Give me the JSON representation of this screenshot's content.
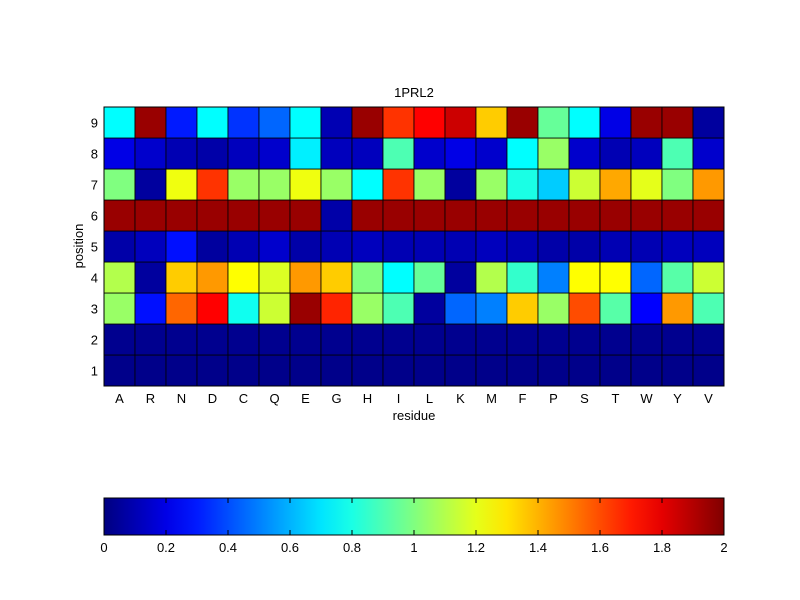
{
  "chart_data": {
    "type": "heatmap",
    "title": "1PRL2",
    "xlabel": "residue",
    "ylabel": "position",
    "x_categories": [
      "A",
      "R",
      "N",
      "D",
      "C",
      "Q",
      "E",
      "G",
      "H",
      "I",
      "L",
      "K",
      "M",
      "F",
      "P",
      "S",
      "T",
      "W",
      "Y",
      "V"
    ],
    "y_categories": [
      "1",
      "2",
      "3",
      "4",
      "5",
      "6",
      "7",
      "8",
      "9"
    ],
    "color_range": [
      0,
      2
    ],
    "colormap": "jet",
    "colorbar_ticks": [
      "0",
      "0.2",
      "0.4",
      "0.6",
      "0.8",
      "1",
      "1.2",
      "1.4",
      "1.6",
      "1.8",
      "2"
    ],
    "values": [
      [
        0.02,
        0.02,
        0.02,
        0.02,
        0.02,
        0.02,
        0.02,
        0.02,
        0.02,
        0.02,
        0.02,
        0.02,
        0.02,
        0.02,
        0.02,
        0.02,
        0.02,
        0.02,
        0.02,
        0.02
      ],
      [
        0.03,
        0.03,
        0.03,
        0.03,
        0.03,
        0.03,
        0.03,
        0.03,
        0.03,
        0.03,
        0.03,
        0.03,
        0.03,
        0.03,
        0.03,
        0.03,
        0.03,
        0.03,
        0.03,
        0.03
      ],
      [
        1.05,
        0.28,
        1.55,
        1.75,
        0.78,
        1.15,
        1.95,
        1.68,
        1.05,
        0.9,
        0.06,
        0.45,
        0.5,
        1.35,
        1.05,
        1.6,
        0.92,
        0.25,
        1.45,
        0.9
      ],
      [
        1.1,
        0.06,
        1.35,
        1.45,
        1.25,
        1.18,
        1.45,
        1.35,
        1.0,
        0.75,
        0.95,
        0.06,
        1.1,
        0.85,
        0.5,
        1.25,
        1.25,
        0.45,
        0.92,
        1.15
      ],
      [
        0.08,
        0.12,
        0.28,
        0.06,
        0.1,
        0.15,
        0.08,
        0.1,
        0.12,
        0.1,
        0.1,
        0.1,
        0.12,
        0.1,
        0.08,
        0.08,
        0.1,
        0.1,
        0.12,
        0.12
      ],
      [
        1.95,
        1.95,
        1.95,
        1.95,
        1.95,
        1.95,
        1.95,
        0.08,
        1.95,
        1.95,
        1.95,
        1.95,
        1.95,
        1.95,
        1.95,
        1.95,
        1.95,
        1.95,
        1.95,
        1.95
      ],
      [
        1.0,
        0.06,
        1.22,
        1.65,
        1.05,
        1.05,
        1.22,
        1.05,
        0.75,
        1.65,
        1.05,
        0.06,
        1.05,
        0.8,
        0.65,
        1.15,
        1.42,
        1.2,
        1.0,
        1.45
      ],
      [
        0.2,
        0.15,
        0.1,
        0.08,
        0.12,
        0.15,
        0.72,
        0.12,
        0.12,
        0.9,
        0.15,
        0.2,
        0.15,
        0.75,
        1.05,
        0.15,
        0.1,
        0.12,
        0.9,
        0.15
      ],
      [
        0.75,
        1.95,
        0.3,
        0.75,
        0.35,
        0.45,
        0.75,
        0.1,
        1.95,
        1.65,
        1.75,
        1.85,
        1.35,
        1.95,
        0.95,
        0.75,
        0.2,
        1.95,
        1.95,
        0.06
      ]
    ]
  }
}
